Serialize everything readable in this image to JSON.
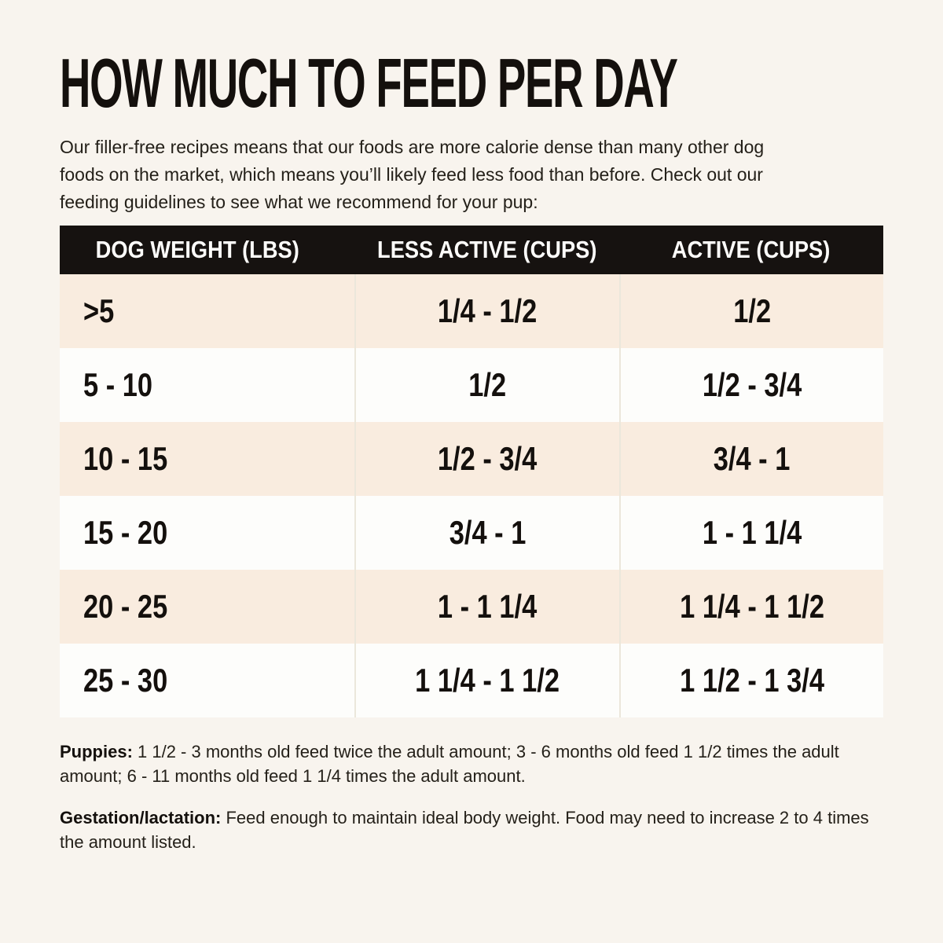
{
  "page": {
    "title": "HOW MUCH TO FEED PER DAY",
    "intro_lines": [
      "Our filler-free recipes means that our foods are more calorie dense than many other dog",
      "foods on the market, which means you’ll likely feed less food than before. Check out our",
      "feeding guidelines to see what we recommend for your pup:"
    ]
  },
  "table": {
    "headers": [
      "DOG WEIGHT (LBS)",
      "LESS ACTIVE (CUPS)",
      "ACTIVE (CUPS)"
    ],
    "rows": [
      [
        ">5",
        "1/4 - 1/2",
        "1/2"
      ],
      [
        "5 - 10",
        "1/2",
        "1/2 - 3/4"
      ],
      [
        "10 - 15",
        "1/2 - 3/4",
        "3/4 - 1"
      ],
      [
        "15 - 20",
        "3/4 - 1",
        "1 - 1 1/4"
      ],
      [
        "20 - 25",
        "1 - 1 1/4",
        "1 1/4 - 1 1/2"
      ],
      [
        "25 - 30",
        "1 1/4 - 1 1/2",
        "1 1/2 - 1 3/4"
      ]
    ]
  },
  "notes": [
    {
      "label": "Puppies:",
      "text": " 1 1/2 - 3 months old feed twice the adult amount; 3 - 6 months old feed 1 1/2 times the adult amount; 6 - 11 months old feed 1 1/4 times the adult amount."
    },
    {
      "label": "Gestation/lactation:",
      "text": " Feed enough to maintain ideal body weight. Food may need to increase 2 to 4 times the amount listed."
    }
  ],
  "colors": {
    "page_bg": "#f8f4ee",
    "header_bg": "#161210",
    "row_alt_bg": "#f9ecdf",
    "row_plain_bg": "#fdfdfb",
    "text": "#1d1916",
    "divider": "#ebe7db"
  }
}
